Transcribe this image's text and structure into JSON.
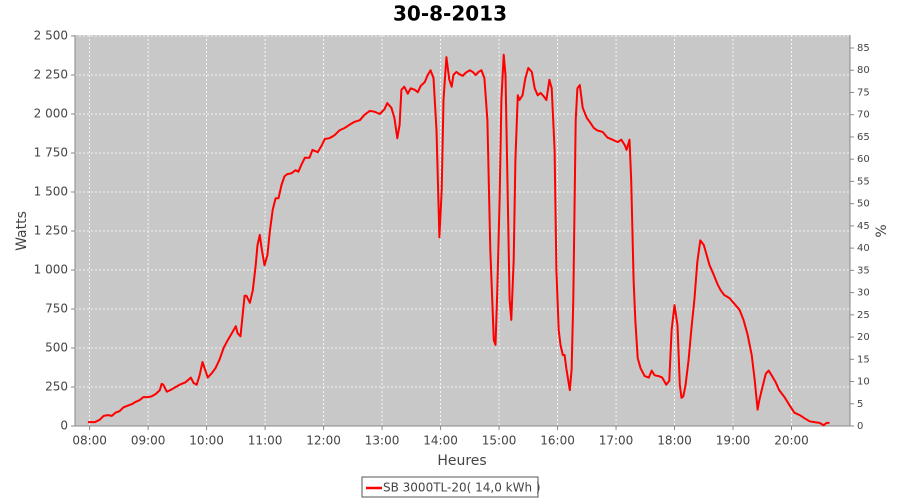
{
  "chart_data": {
    "type": "line",
    "title": "30-8-2013",
    "x_label": "Heures",
    "y_label": "Watts",
    "y2_label": "%",
    "x": [
      7.97,
      8.09,
      8.17,
      8.24,
      8.31,
      8.38,
      8.44,
      8.51,
      8.58,
      8.65,
      8.72,
      8.79,
      8.85,
      8.92,
      8.99,
      9.06,
      9.13,
      9.2,
      9.23,
      9.26,
      9.32,
      9.38,
      9.45,
      9.54,
      9.64,
      9.73,
      9.78,
      9.83,
      9.88,
      9.93,
      9.98,
      10.02,
      10.09,
      10.15,
      10.22,
      10.29,
      10.36,
      10.43,
      10.5,
      10.53,
      10.58,
      10.65,
      10.68,
      10.74,
      10.79,
      10.84,
      10.87,
      10.91,
      10.94,
      10.99,
      11.04,
      11.08,
      11.13,
      11.18,
      11.23,
      11.28,
      11.33,
      11.38,
      11.45,
      11.52,
      11.57,
      11.62,
      11.68,
      11.76,
      11.81,
      11.9,
      11.97,
      12.02,
      12.1,
      12.19,
      12.27,
      12.36,
      12.44,
      12.53,
      12.62,
      12.7,
      12.79,
      12.87,
      12.96,
      13.04,
      13.09,
      13.16,
      13.21,
      13.26,
      13.3,
      13.33,
      13.38,
      13.44,
      13.49,
      13.56,
      13.61,
      13.66,
      13.73,
      13.78,
      13.83,
      13.88,
      13.93,
      13.98,
      14.02,
      14.05,
      14.1,
      14.15,
      14.19,
      14.22,
      14.27,
      14.32,
      14.38,
      14.43,
      14.5,
      14.55,
      14.6,
      14.65,
      14.7,
      14.75,
      14.8,
      14.85,
      14.91,
      14.94,
      14.97,
      15.01,
      15.04,
      15.08,
      15.11,
      15.15,
      15.18,
      15.21,
      15.25,
      15.28,
      15.32,
      15.35,
      15.4,
      15.45,
      15.5,
      15.56,
      15.61,
      15.66,
      15.71,
      15.76,
      15.81,
      15.86,
      15.9,
      15.95,
      15.98,
      16.02,
      16.05,
      16.09,
      16.12,
      16.15,
      16.21,
      16.24,
      16.27,
      16.31,
      16.34,
      16.38,
      16.43,
      16.5,
      16.55,
      16.62,
      16.68,
      16.77,
      16.85,
      16.94,
      17.03,
      17.09,
      17.15,
      17.18,
      17.23,
      17.26,
      17.3,
      17.33,
      17.37,
      17.42,
      17.49,
      17.56,
      17.61,
      17.66,
      17.73,
      17.79,
      17.86,
      17.91,
      17.95,
      18.0,
      18.05,
      18.09,
      18.12,
      18.15,
      18.19,
      18.24,
      18.29,
      18.34,
      18.39,
      18.44,
      18.5,
      18.55,
      18.6,
      18.67,
      18.74,
      18.79,
      18.85,
      18.94,
      19.03,
      19.11,
      19.18,
      19.25,
      19.32,
      19.37,
      19.42,
      19.45,
      19.49,
      19.56,
      19.61,
      19.66,
      19.73,
      19.79,
      19.88,
      19.97,
      20.05,
      20.14,
      20.22,
      20.31,
      20.39,
      20.48,
      20.55,
      20.6,
      20.65
    ],
    "series": [
      {
        "name": "SB 3000TL-20( 14,0 kWh )",
        "color": "#ff0000",
        "values": [
          25,
          25,
          40,
          65,
          70,
          65,
          85,
          95,
          120,
          130,
          140,
          155,
          165,
          185,
          185,
          190,
          205,
          230,
          270,
          265,
          220,
          230,
          245,
          265,
          280,
          310,
          275,
          265,
          325,
          410,
          355,
          310,
          340,
          370,
          425,
          500,
          550,
          595,
          640,
          595,
          575,
          835,
          835,
          790,
          870,
          1030,
          1160,
          1225,
          1140,
          1030,
          1095,
          1245,
          1385,
          1460,
          1460,
          1545,
          1600,
          1615,
          1620,
          1640,
          1630,
          1675,
          1720,
          1720,
          1770,
          1755,
          1800,
          1840,
          1845,
          1865,
          1895,
          1910,
          1930,
          1950,
          1960,
          1995,
          2020,
          2015,
          2000,
          2030,
          2070,
          2040,
          1975,
          1845,
          1930,
          2155,
          2175,
          2130,
          2165,
          2155,
          2140,
          2180,
          2205,
          2250,
          2280,
          2230,
          1895,
          1210,
          1515,
          2090,
          2365,
          2220,
          2175,
          2250,
          2270,
          2255,
          2245,
          2265,
          2280,
          2270,
          2250,
          2270,
          2280,
          2230,
          1960,
          1130,
          550,
          520,
          870,
          1450,
          2090,
          2380,
          2250,
          1450,
          810,
          680,
          1065,
          1705,
          2120,
          2090,
          2120,
          2230,
          2295,
          2270,
          2165,
          2120,
          2135,
          2115,
          2090,
          2220,
          2165,
          1770,
          1000,
          615,
          520,
          455,
          455,
          370,
          230,
          360,
          810,
          1960,
          2165,
          2185,
          2040,
          1975,
          1950,
          1910,
          1895,
          1885,
          1850,
          1835,
          1820,
          1835,
          1800,
          1770,
          1835,
          1575,
          935,
          680,
          435,
          370,
          320,
          310,
          355,
          325,
          320,
          310,
          265,
          290,
          615,
          775,
          645,
          265,
          180,
          190,
          265,
          425,
          630,
          810,
          1050,
          1190,
          1160,
          1095,
          1030,
          970,
          905,
          870,
          840,
          820,
          780,
          745,
          680,
          585,
          455,
          295,
          105,
          165,
          230,
          335,
          355,
          325,
          280,
          230,
          185,
          130,
          85,
          70,
          50,
          30,
          25,
          20,
          5,
          20,
          20
        ]
      }
    ],
    "xlim": [
      7.75,
      21.0
    ],
    "xticks": [
      {
        "value": 8,
        "label": "08:00"
      },
      {
        "value": 9,
        "label": "09:00"
      },
      {
        "value": 10,
        "label": "10:00"
      },
      {
        "value": 11,
        "label": "11:00"
      },
      {
        "value": 12,
        "label": "12:00"
      },
      {
        "value": 13,
        "label": "13:00"
      },
      {
        "value": 14,
        "label": "14:00"
      },
      {
        "value": 15,
        "label": "15:00"
      },
      {
        "value": 16,
        "label": "16:00"
      },
      {
        "value": 17,
        "label": "17:00"
      },
      {
        "value": 18,
        "label": "18:00"
      },
      {
        "value": 19,
        "label": "19:00"
      },
      {
        "value": 20,
        "label": "20:00"
      }
    ],
    "ylim": [
      0,
      2500
    ],
    "yticks": [
      0,
      250,
      500,
      750,
      {
        "value": 1000,
        "label": "1 000"
      },
      {
        "value": 1250,
        "label": "1 250"
      },
      {
        "value": 1500,
        "label": "1 500"
      },
      {
        "value": 1750,
        "label": "1 750"
      },
      {
        "value": 2000,
        "label": "2 000"
      },
      {
        "value": 2250,
        "label": "2 250"
      },
      {
        "value": 2500,
        "label": "2 500"
      }
    ],
    "y2lim": [
      0,
      87.7
    ],
    "y2ticks": [
      0,
      5,
      10,
      15,
      20,
      25,
      30,
      35,
      40,
      45,
      50,
      55,
      60,
      65,
      70,
      75,
      80,
      85
    ],
    "grid": true,
    "legend": "bottom"
  }
}
